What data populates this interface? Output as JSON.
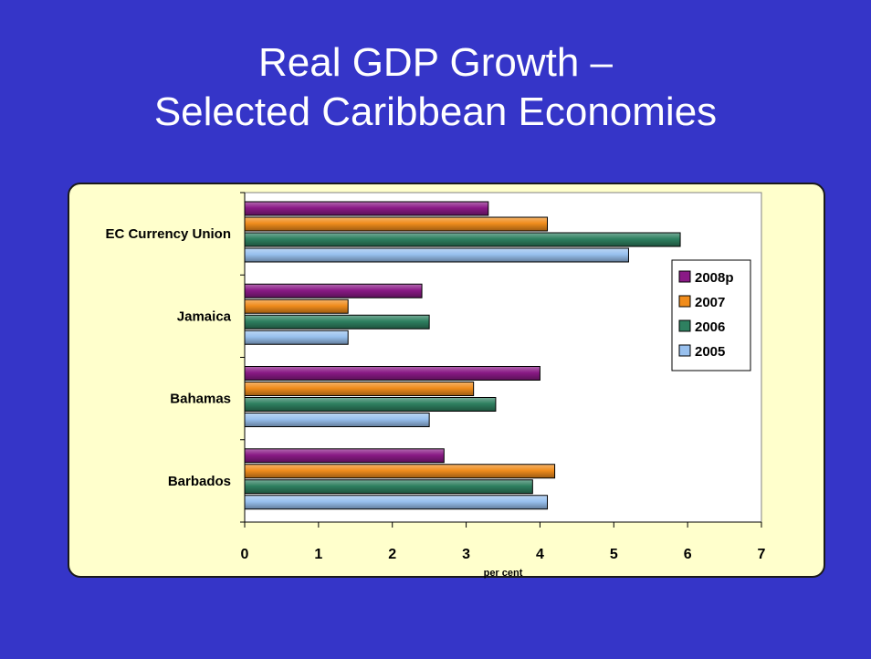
{
  "slide": {
    "title_line1": "Real GDP Growth –",
    "title_line2": "Selected Caribbean Economies"
  },
  "colors": {
    "background": "#3535c8",
    "panel": "#ffffcc",
    "2008p": "#8a1a86",
    "2007": "#f08c1c",
    "2006": "#2e8060",
    "2005": "#98c0ee"
  },
  "chart_data": {
    "type": "bar",
    "orientation": "horizontal",
    "categories": [
      "EC Currency Union",
      "Jamaica",
      "Bahamas",
      "Barbados"
    ],
    "series": [
      {
        "name": "2008p",
        "values": [
          3.3,
          2.4,
          4.0,
          2.7
        ]
      },
      {
        "name": "2007",
        "values": [
          4.1,
          1.4,
          3.1,
          4.2
        ]
      },
      {
        "name": "2006",
        "values": [
          5.9,
          2.5,
          3.4,
          3.9
        ]
      },
      {
        "name": "2005",
        "values": [
          5.2,
          1.4,
          2.5,
          4.1
        ]
      }
    ],
    "xlabel": "per cent",
    "xlim": [
      0,
      7
    ],
    "xticks": [
      "0",
      "1",
      "2",
      "3",
      "4",
      "5",
      "6",
      "7"
    ],
    "legend_position": "right",
    "grid": false
  }
}
